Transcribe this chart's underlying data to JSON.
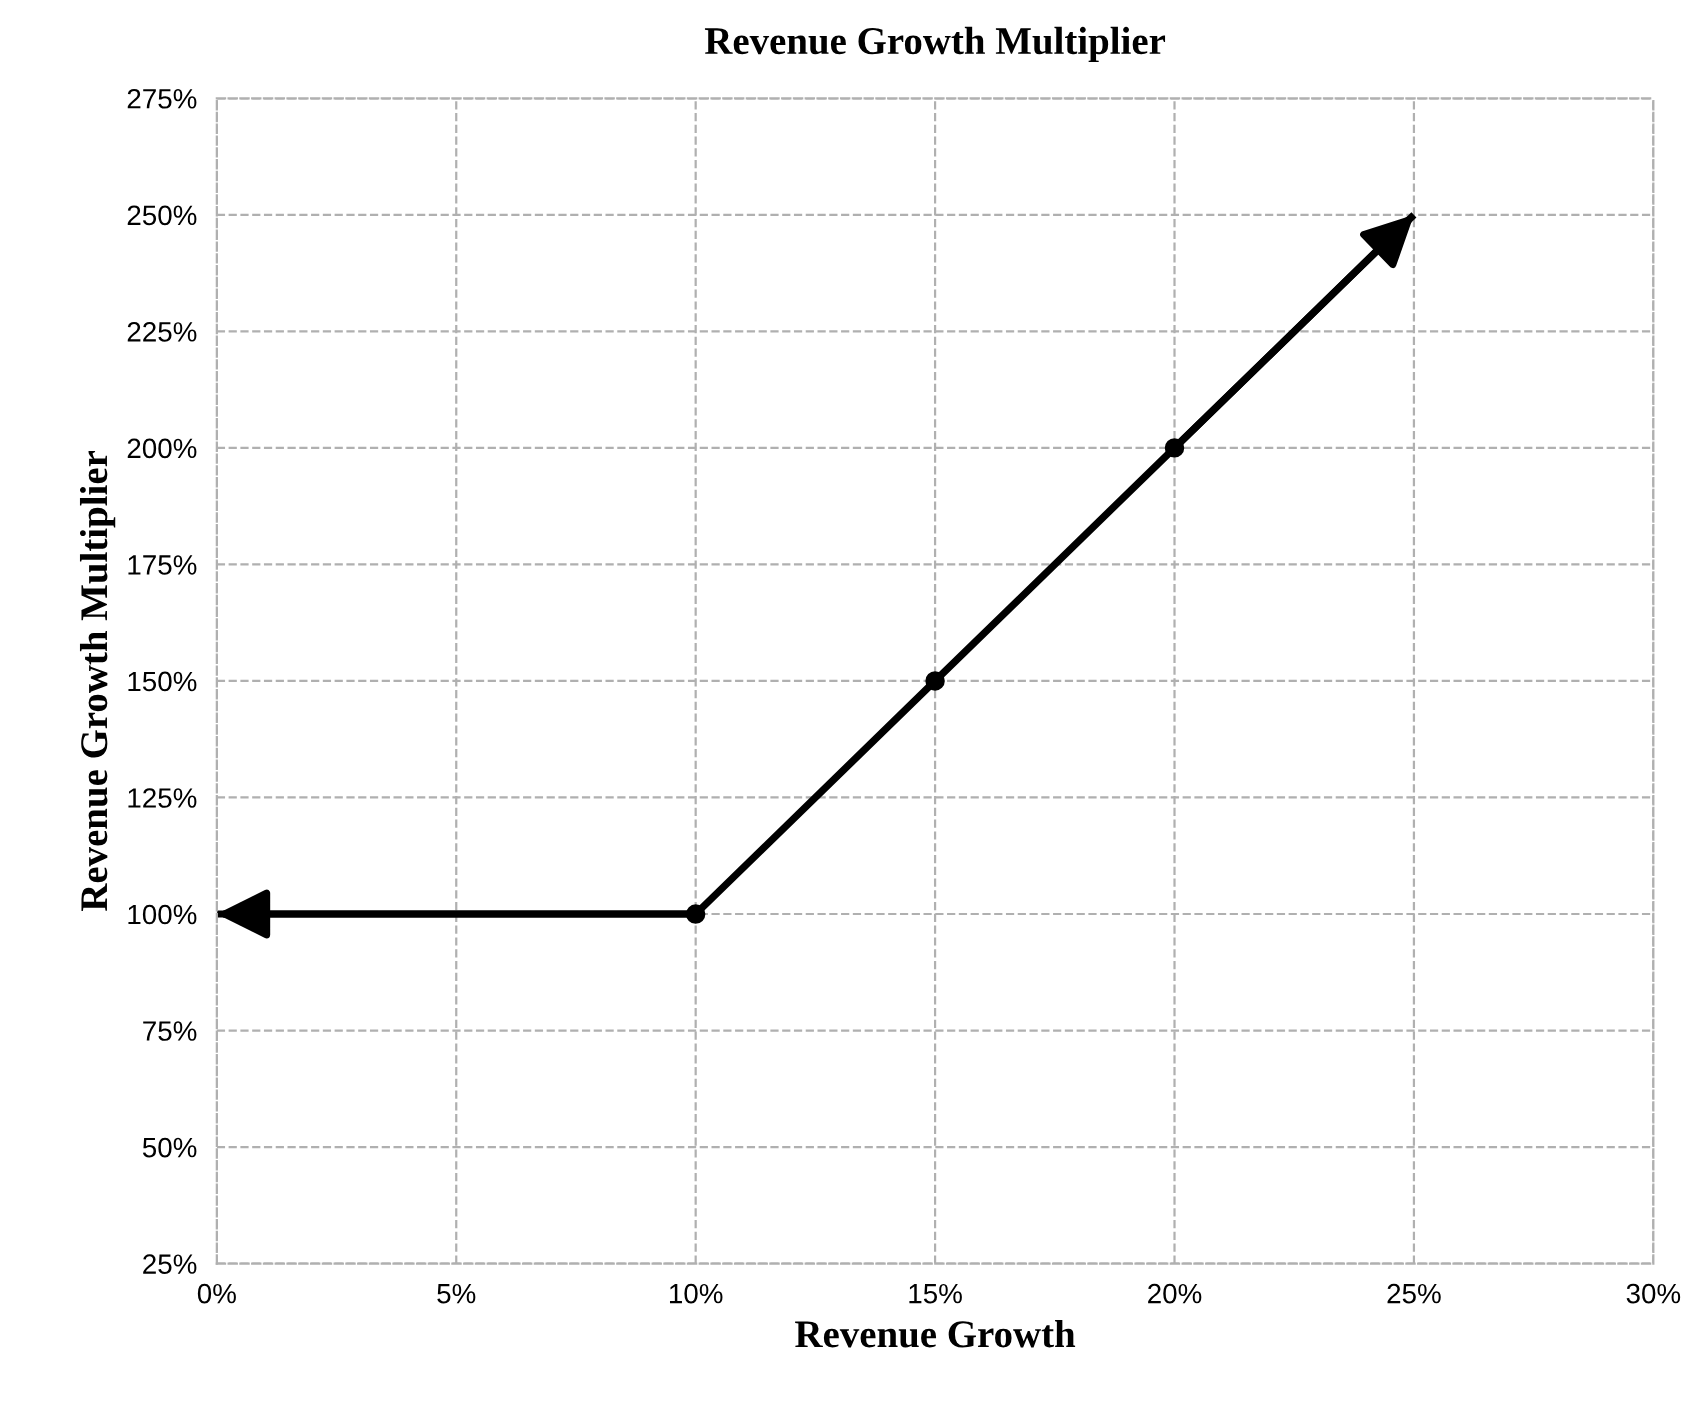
{
  "chart_data": {
    "type": "line",
    "title": "Revenue Growth Multiplier",
    "xlabel": "Revenue Growth",
    "ylabel": "Revenue Growth Multiplier",
    "x": [
      0,
      10,
      15,
      20,
      25
    ],
    "series": [
      {
        "color": "#000000",
        "values": [
          100,
          100,
          150,
          200,
          250
        ]
      }
    ],
    "xlim": [
      0,
      30
    ],
    "xticks": [
      {
        "value": 0,
        "label": "0%"
      },
      {
        "value": 5,
        "label": "5%"
      },
      {
        "value": 10,
        "label": "10%"
      },
      {
        "value": 15,
        "label": "15%"
      },
      {
        "value": 20,
        "label": "20%"
      },
      {
        "value": 25,
        "label": "25%"
      },
      {
        "value": 30,
        "label": "30%"
      }
    ],
    "ylim": [
      25,
      275
    ],
    "yticks": [
      {
        "value": 25,
        "label": "25%"
      },
      {
        "value": 50,
        "label": "50%"
      },
      {
        "value": 75,
        "label": "75%"
      },
      {
        "value": 100,
        "label": "100%"
      },
      {
        "value": 125,
        "label": "125%"
      },
      {
        "value": 150,
        "label": "150%"
      },
      {
        "value": 175,
        "label": "175%"
      },
      {
        "value": 200,
        "label": "200%"
      },
      {
        "value": 225,
        "label": "225%"
      },
      {
        "value": 250,
        "label": "250%"
      },
      {
        "value": 275,
        "label": "275%"
      }
    ],
    "grid": true,
    "marker": "circle",
    "line_style": "solid"
  }
}
